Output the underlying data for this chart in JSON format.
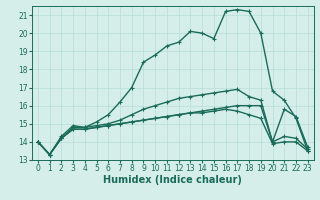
{
  "xlabel": "Humidex (Indice chaleur)",
  "xlim": [
    -0.5,
    23.5
  ],
  "ylim": [
    13,
    21.5
  ],
  "yticks": [
    13,
    14,
    15,
    16,
    17,
    18,
    19,
    20,
    21
  ],
  "xticks": [
    0,
    1,
    2,
    3,
    4,
    5,
    6,
    7,
    8,
    9,
    10,
    11,
    12,
    13,
    14,
    15,
    16,
    17,
    18,
    19,
    20,
    21,
    22,
    23
  ],
  "bg_color": "#d5eeea",
  "line_color": "#1a6b5a",
  "grid_color": "#b8ddd8",
  "lines": [
    [
      14.0,
      13.3,
      14.2,
      14.8,
      14.8,
      15.1,
      15.5,
      16.2,
      17.0,
      18.4,
      18.8,
      19.3,
      19.5,
      20.1,
      20.0,
      19.7,
      21.2,
      21.3,
      21.2,
      20.0,
      16.8,
      16.3,
      15.3,
      13.5
    ],
    [
      14.0,
      13.3,
      14.3,
      14.9,
      14.8,
      14.9,
      15.0,
      15.2,
      15.5,
      15.8,
      16.0,
      16.2,
      16.4,
      16.5,
      16.6,
      16.7,
      16.8,
      16.9,
      16.5,
      16.3,
      14.0,
      15.8,
      15.4,
      13.7
    ],
    [
      14.0,
      13.3,
      14.2,
      14.7,
      14.7,
      14.8,
      14.9,
      15.0,
      15.1,
      15.2,
      15.3,
      15.4,
      15.5,
      15.6,
      15.7,
      15.8,
      15.9,
      16.0,
      16.0,
      16.0,
      14.0,
      14.3,
      14.2,
      13.6
    ],
    [
      14.0,
      13.3,
      14.2,
      14.7,
      14.7,
      14.8,
      14.9,
      15.0,
      15.1,
      15.2,
      15.3,
      15.4,
      15.5,
      15.6,
      15.6,
      15.7,
      15.8,
      15.7,
      15.5,
      15.3,
      13.9,
      14.0,
      14.0,
      13.5
    ]
  ],
  "marker": "+",
  "markersize": 3.5,
  "linewidth": 1.0,
  "xlabel_fontsize": 7,
  "tick_fontsize": 5.5,
  "ylabel_fontsize": 6
}
